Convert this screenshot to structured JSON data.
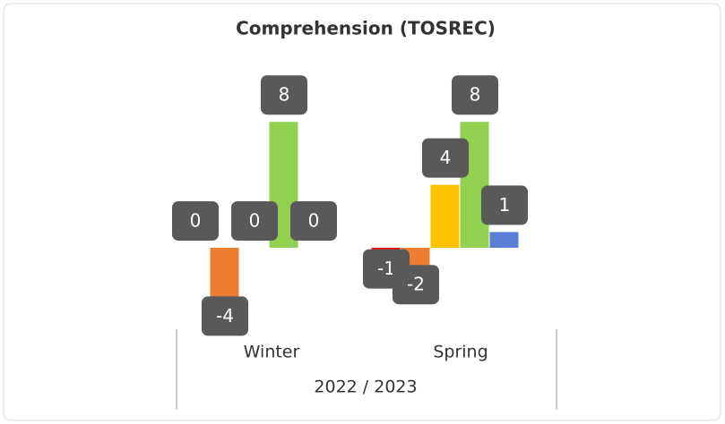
{
  "chart_data": {
    "type": "bar",
    "title": "Comprehension (TOSREC)",
    "categories": [
      "Winter",
      "Spring"
    ],
    "group_label": "2022 / 2023",
    "series": [
      {
        "color": "#ff0000",
        "values": [
          0,
          -1
        ]
      },
      {
        "color": "#ed7d31",
        "values": [
          -4,
          -2
        ]
      },
      {
        "color": "#ffc000",
        "values": [
          0,
          4
        ]
      },
      {
        "color": "#92d050",
        "values": [
          8,
          8
        ]
      },
      {
        "color": "#5b7fd6",
        "values": [
          0,
          1
        ]
      }
    ],
    "ylim": [
      -5,
      10
    ]
  }
}
